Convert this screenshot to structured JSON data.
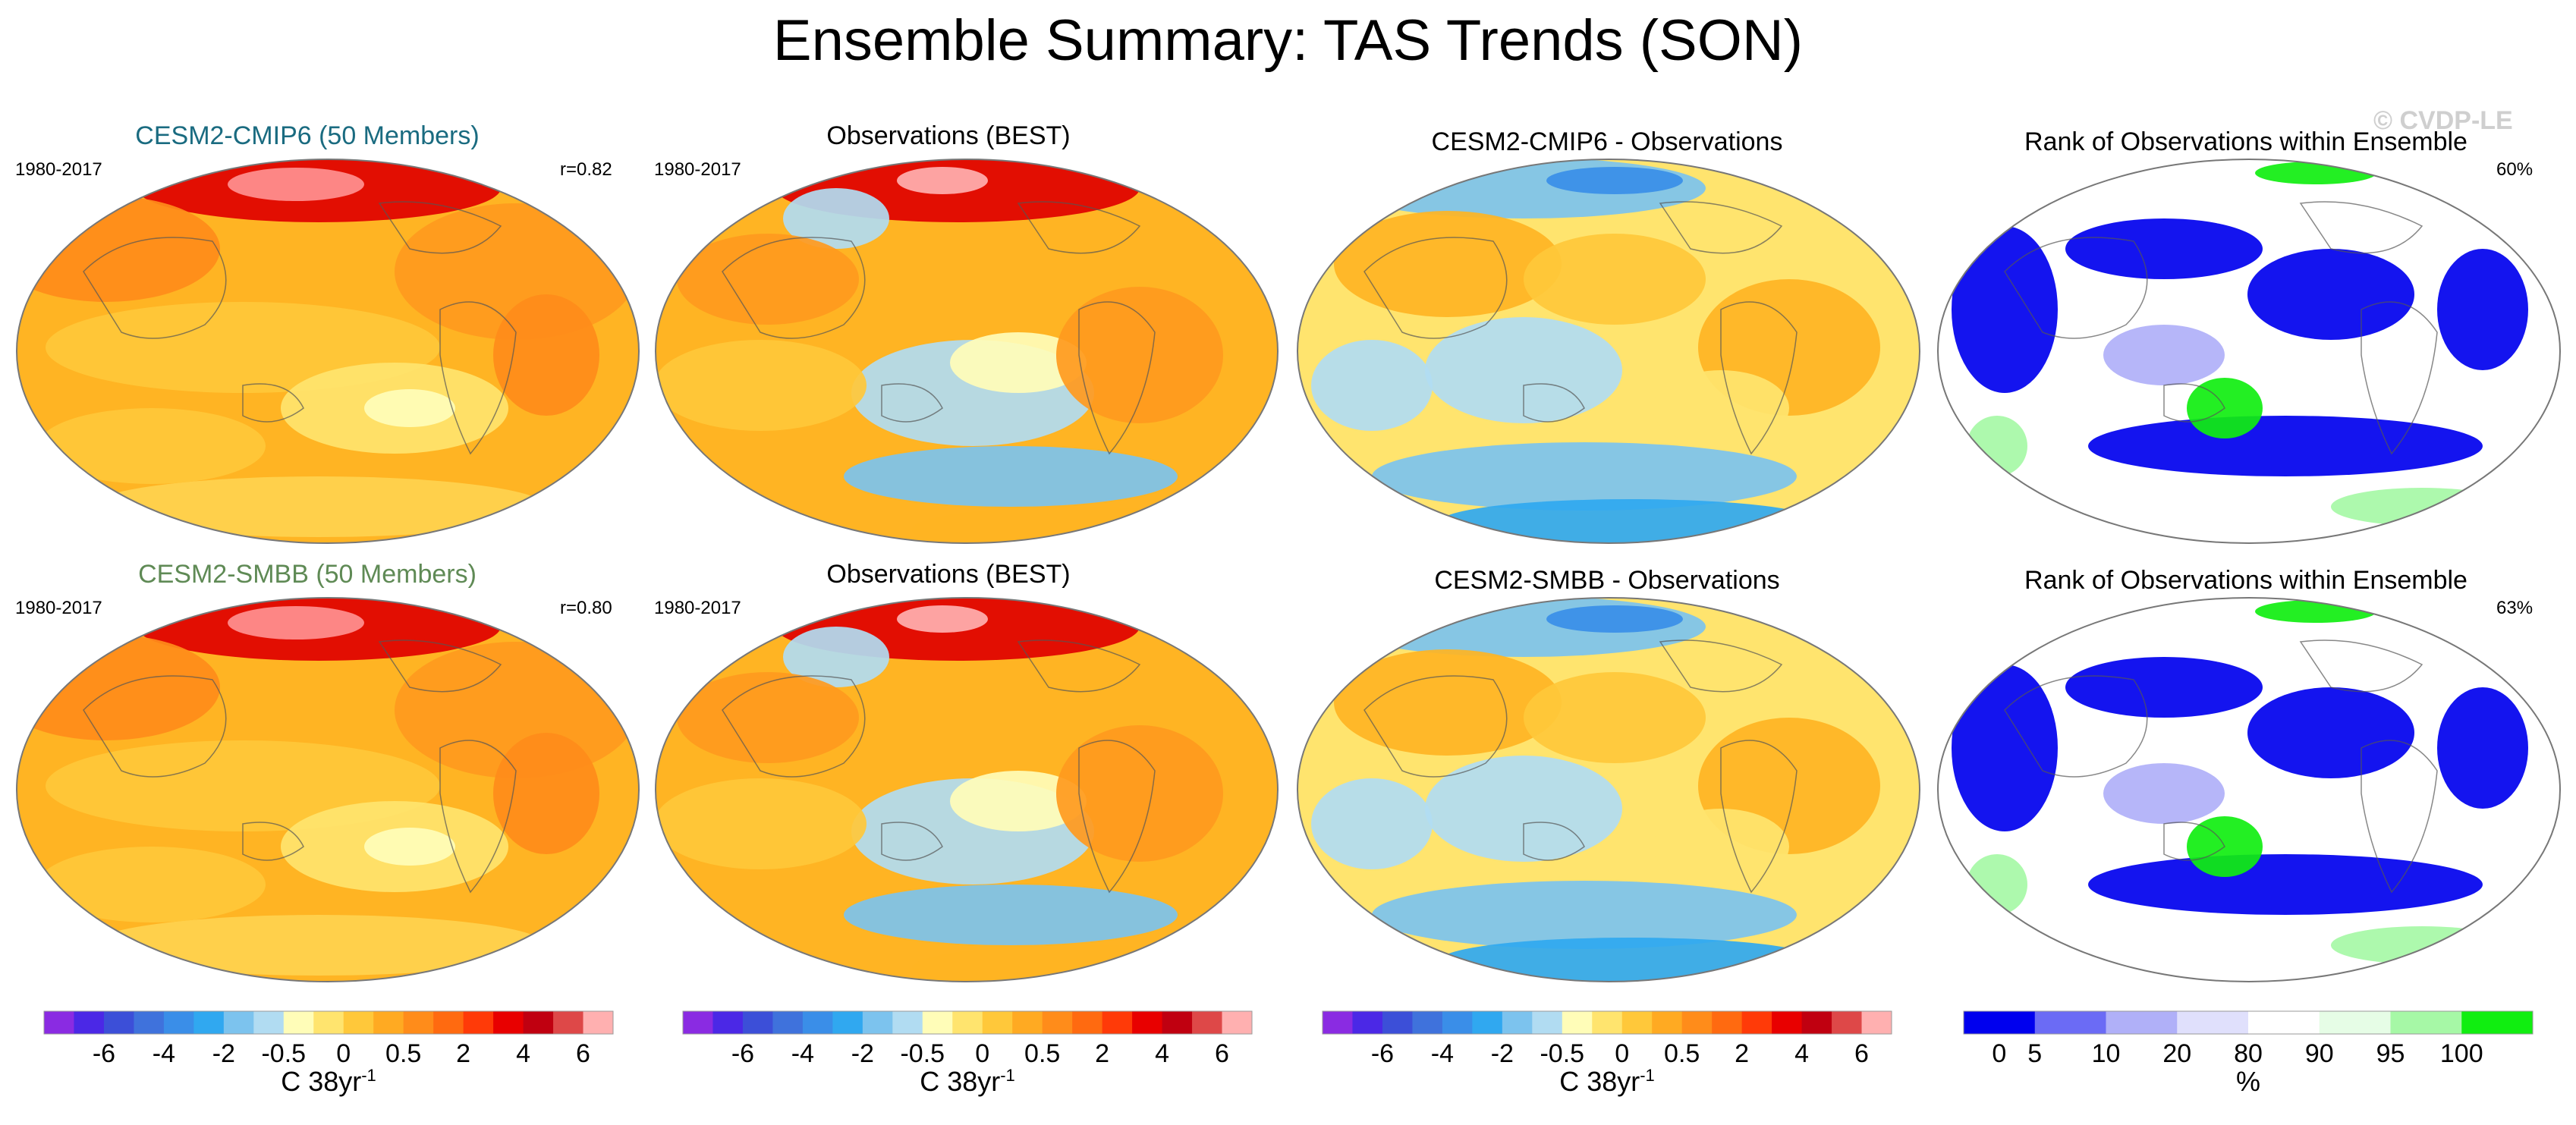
{
  "title": "Ensemble Summary: TAS Trends (SON)",
  "watermark": "© CVDP-LE",
  "panels": {
    "r1c1": {
      "title": "CESM2-CMIP6 (50 Members)",
      "title_color": "#1a6b80",
      "period": "1980-2017",
      "stat": "r=0.82",
      "type": "model"
    },
    "r1c2": {
      "title": "Observations (BEST)",
      "title_color": "#000000",
      "period": "1980-2017",
      "stat": "",
      "type": "obs"
    },
    "r1c3": {
      "title": "CESM2-CMIP6 - Observations",
      "title_color": "#000000",
      "period": "",
      "stat": "",
      "type": "diff"
    },
    "r1c4": {
      "title": "Rank of Observations within Ensemble",
      "title_color": "#000000",
      "period": "",
      "stat": "60%",
      "type": "rank"
    },
    "r2c1": {
      "title": "CESM2-SMBB (50 Members)",
      "title_color": "#5f8a55",
      "period": "1980-2017",
      "stat": "r=0.80",
      "type": "model"
    },
    "r2c2": {
      "title": "Observations (BEST)",
      "title_color": "#000000",
      "period": "1980-2017",
      "stat": "",
      "type": "obs"
    },
    "r2c3": {
      "title": "CESM2-SMBB - Observations",
      "title_color": "#000000",
      "period": "",
      "stat": "",
      "type": "diff"
    },
    "r2c4": {
      "title": "Rank of Observations within Ensemble",
      "title_color": "#000000",
      "period": "",
      "stat": "63%",
      "type": "rank"
    }
  },
  "colorbars": {
    "trend": {
      "colors": [
        "#8a2be2",
        "#4b28e6",
        "#3c4fd8",
        "#3f72dc",
        "#3a8ee8",
        "#30a8f0",
        "#7cc3ee",
        "#b1dcf2",
        "#fffdb8",
        "#ffe46e",
        "#ffc83a",
        "#ffaa22",
        "#ff8c1a",
        "#ff6a10",
        "#ff3a08",
        "#e80000",
        "#c00010",
        "#de4848",
        "#ffb0b0"
      ],
      "labels": [
        "-6",
        "-4",
        "-2",
        "-0.5",
        "0",
        "0.5",
        "2",
        "4",
        "6"
      ],
      "label_boundaries": [
        2,
        4,
        6,
        8,
        10,
        12,
        14,
        16,
        18
      ],
      "unit": "C 38yr",
      "unit_sup": "-1"
    },
    "rank": {
      "colors": [
        "#0000ee",
        "#6b6bf5",
        "#b0b0f8",
        "#e0e0fc",
        "#ffffff",
        "#e6fde6",
        "#a6f8a6",
        "#10ee10"
      ],
      "labels": [
        "0",
        "5",
        "10",
        "20",
        "80",
        "90",
        "95",
        "100"
      ],
      "label_boundaries": [
        0.5,
        1,
        2,
        3,
        4,
        5,
        6,
        7
      ],
      "unit": "%"
    }
  }
}
